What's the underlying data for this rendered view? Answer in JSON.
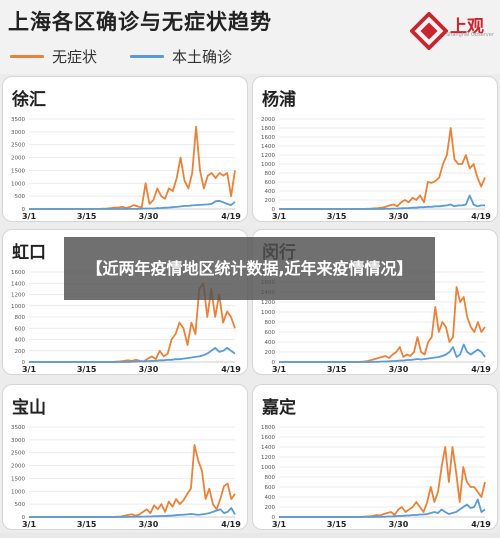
{
  "header": {
    "title": "上海各区确诊与无症状趋势",
    "logo_text": "上观",
    "logo_sub": "Shanghai Observer",
    "brand_color": "#c8262f"
  },
  "legend": [
    {
      "label": "无症状",
      "color": "#e8823a"
    },
    {
      "label": "本土确诊",
      "color": "#5b9bd5"
    }
  ],
  "overlay": {
    "text": "【近两年疫情地区统计数据,近年来疫情情况】"
  },
  "chart_data": [
    {
      "type": "line",
      "title": "徐汇",
      "x_ticks": [
        "3/1",
        "3/15",
        "3/30",
        "4/19"
      ],
      "y_ticks": [
        0,
        500,
        1000,
        1500,
        2000,
        2500,
        3000,
        3500
      ],
      "ylim": [
        0,
        3500
      ],
      "series": [
        {
          "name": "无症状",
          "values": [
            0,
            0,
            0,
            0,
            0,
            0,
            0,
            0,
            0,
            0,
            0,
            0,
            0,
            0,
            0,
            0,
            0,
            0,
            5,
            10,
            20,
            30,
            50,
            60,
            80,
            40,
            80,
            150,
            100,
            60,
            1000,
            200,
            350,
            800,
            500,
            400,
            800,
            700,
            1200,
            2000,
            1100,
            800,
            1400,
            3200,
            1500,
            800,
            1300,
            1400,
            1200,
            1400,
            1300,
            1400,
            500,
            1500
          ]
        },
        {
          "name": "本土确诊",
          "values": [
            0,
            0,
            0,
            0,
            0,
            0,
            0,
            0,
            0,
            0,
            0,
            0,
            0,
            0,
            0,
            0,
            0,
            0,
            0,
            0,
            0,
            0,
            0,
            0,
            0,
            0,
            5,
            5,
            5,
            10,
            20,
            20,
            20,
            30,
            40,
            50,
            60,
            70,
            80,
            100,
            120,
            120,
            140,
            150,
            160,
            170,
            180,
            200,
            300,
            320,
            260,
            200,
            150,
            280
          ]
        }
      ]
    },
    {
      "type": "line",
      "title": "杨浦",
      "x_ticks": [
        "3/1",
        "3/15",
        "3/30",
        "4/19"
      ],
      "y_ticks": [
        0,
        200,
        400,
        600,
        800,
        1000,
        1200,
        1400,
        1600,
        1800,
        2000
      ],
      "ylim": [
        0,
        2000
      ],
      "series": [
        {
          "name": "无症状",
          "values": [
            0,
            0,
            0,
            0,
            0,
            0,
            0,
            0,
            0,
            0,
            0,
            0,
            0,
            0,
            0,
            0,
            0,
            0,
            0,
            0,
            0,
            0,
            0,
            5,
            10,
            15,
            20,
            30,
            50,
            80,
            100,
            60,
            150,
            200,
            150,
            250,
            200,
            300,
            150,
            600,
            580,
            620,
            700,
            1000,
            1200,
            1800,
            1100,
            1000,
            1000,
            1200,
            900,
            1000,
            700,
            500,
            700
          ]
        },
        {
          "name": "本土确诊",
          "values": [
            0,
            0,
            0,
            0,
            0,
            0,
            0,
            0,
            0,
            0,
            0,
            0,
            0,
            0,
            0,
            0,
            0,
            0,
            0,
            0,
            0,
            0,
            0,
            0,
            0,
            0,
            0,
            0,
            5,
            5,
            10,
            10,
            15,
            20,
            20,
            30,
            30,
            40,
            40,
            50,
            50,
            60,
            60,
            70,
            80,
            100,
            60,
            80,
            80,
            100,
            300,
            100,
            60,
            80,
            80
          ]
        }
      ]
    },
    {
      "type": "line",
      "title": "虹口",
      "x_ticks": [
        "3/1",
        "3/15",
        "3/30",
        "4/19"
      ],
      "y_ticks": [
        0,
        200,
        400,
        600,
        800,
        1000,
        1200,
        1400,
        1600
      ],
      "ylim": [
        0,
        1600
      ],
      "series": [
        {
          "name": "无症状",
          "values": [
            0,
            0,
            0,
            0,
            0,
            0,
            0,
            0,
            0,
            0,
            0,
            0,
            0,
            0,
            0,
            0,
            0,
            0,
            0,
            0,
            0,
            0,
            5,
            10,
            20,
            30,
            20,
            40,
            20,
            10,
            60,
            100,
            50,
            200,
            100,
            150,
            400,
            500,
            700,
            600,
            300,
            700,
            500,
            1300,
            1400,
            800,
            1300,
            800,
            1200,
            700,
            900,
            800,
            600
          ]
        },
        {
          "name": "本土确诊",
          "values": [
            0,
            0,
            0,
            0,
            0,
            0,
            0,
            0,
            0,
            0,
            0,
            0,
            0,
            0,
            0,
            0,
            0,
            0,
            0,
            0,
            0,
            0,
            0,
            0,
            0,
            0,
            5,
            5,
            10,
            10,
            15,
            20,
            20,
            30,
            30,
            40,
            40,
            50,
            50,
            60,
            70,
            80,
            90,
            100,
            120,
            150,
            200,
            250,
            180,
            200,
            250,
            200,
            150
          ]
        }
      ]
    },
    {
      "type": "line",
      "title": "闵行",
      "x_ticks": [
        "3/1",
        "3/15",
        "3/30",
        "4/19"
      ],
      "y_ticks": [
        0,
        200,
        400,
        600,
        800,
        1000,
        1200,
        1400,
        1600,
        1800
      ],
      "ylim": [
        0,
        1800
      ],
      "series": [
        {
          "name": "无症状",
          "values": [
            0,
            0,
            0,
            0,
            0,
            0,
            0,
            0,
            0,
            0,
            0,
            0,
            0,
            0,
            0,
            0,
            0,
            0,
            0,
            0,
            0,
            0,
            0,
            5,
            10,
            20,
            40,
            60,
            80,
            100,
            120,
            80,
            150,
            200,
            300,
            100,
            150,
            120,
            200,
            500,
            200,
            150,
            400,
            500,
            1100,
            600,
            800,
            700,
            400,
            500,
            1500,
            1200,
            1300,
            900,
            700,
            600,
            800,
            600,
            700
          ]
        },
        {
          "name": "本土确诊",
          "values": [
            0,
            0,
            0,
            0,
            0,
            0,
            0,
            0,
            0,
            0,
            0,
            0,
            0,
            0,
            0,
            0,
            0,
            0,
            0,
            0,
            0,
            0,
            0,
            0,
            0,
            0,
            0,
            5,
            5,
            10,
            10,
            15,
            20,
            20,
            30,
            30,
            40,
            40,
            50,
            60,
            50,
            60,
            70,
            80,
            90,
            100,
            120,
            150,
            200,
            300,
            100,
            150,
            350,
            200,
            150,
            200,
            250,
            200,
            100
          ]
        }
      ]
    },
    {
      "type": "line",
      "title": "宝山",
      "x_ticks": [
        "3/1",
        "3/15",
        "3/30",
        "4/19"
      ],
      "y_ticks": [
        0,
        500,
        1000,
        1500,
        2000,
        2500,
        3000,
        3500
      ],
      "ylim": [
        0,
        3500
      ],
      "series": [
        {
          "name": "无症状",
          "values": [
            0,
            0,
            0,
            0,
            0,
            0,
            0,
            0,
            0,
            0,
            0,
            0,
            0,
            0,
            0,
            0,
            0,
            0,
            0,
            0,
            0,
            0,
            0,
            5,
            10,
            20,
            50,
            80,
            100,
            50,
            100,
            200,
            300,
            150,
            450,
            300,
            500,
            200,
            600,
            400,
            700,
            500,
            650,
            900,
            1100,
            2800,
            2200,
            1800,
            700,
            1100,
            500,
            300,
            700,
            1200,
            1300,
            700,
            900
          ]
        },
        {
          "name": "本土确诊",
          "values": [
            0,
            0,
            0,
            0,
            0,
            0,
            0,
            0,
            0,
            0,
            0,
            0,
            0,
            0,
            0,
            0,
            0,
            0,
            0,
            0,
            0,
            0,
            0,
            0,
            0,
            0,
            0,
            5,
            5,
            10,
            10,
            15,
            20,
            20,
            30,
            30,
            40,
            40,
            50,
            60,
            70,
            80,
            90,
            100,
            120,
            100,
            80,
            100,
            120,
            150,
            200,
            250,
            300,
            150,
            200,
            350,
            100
          ]
        }
      ]
    },
    {
      "type": "line",
      "title": "嘉定",
      "x_ticks": [
        "3/1",
        "3/15",
        "3/30",
        "4/19"
      ],
      "y_ticks": [
        0,
        200,
        400,
        600,
        800,
        1000,
        1200,
        1400,
        1600,
        1800
      ],
      "ylim": [
        0,
        1800
      ],
      "series": [
        {
          "name": "无症状",
          "values": [
            0,
            0,
            0,
            0,
            0,
            0,
            0,
            0,
            0,
            0,
            0,
            0,
            0,
            0,
            0,
            0,
            0,
            0,
            0,
            0,
            0,
            0,
            0,
            5,
            10,
            15,
            20,
            40,
            30,
            60,
            80,
            100,
            40,
            150,
            200,
            100,
            150,
            200,
            300,
            200,
            100,
            300,
            600,
            300,
            500,
            1000,
            1400,
            700,
            1400,
            900,
            300,
            1000,
            700,
            600,
            600,
            500,
            400,
            700
          ]
        },
        {
          "name": "本土确诊",
          "values": [
            0,
            0,
            0,
            0,
            0,
            0,
            0,
            0,
            0,
            0,
            0,
            0,
            0,
            0,
            0,
            0,
            0,
            0,
            0,
            0,
            0,
            0,
            0,
            0,
            0,
            0,
            0,
            5,
            5,
            5,
            10,
            10,
            15,
            20,
            20,
            30,
            30,
            40,
            40,
            50,
            50,
            60,
            80,
            100,
            80,
            150,
            100,
            60,
            80,
            100,
            150,
            200,
            250,
            180,
            200,
            350,
            100,
            150
          ]
        }
      ]
    }
  ]
}
